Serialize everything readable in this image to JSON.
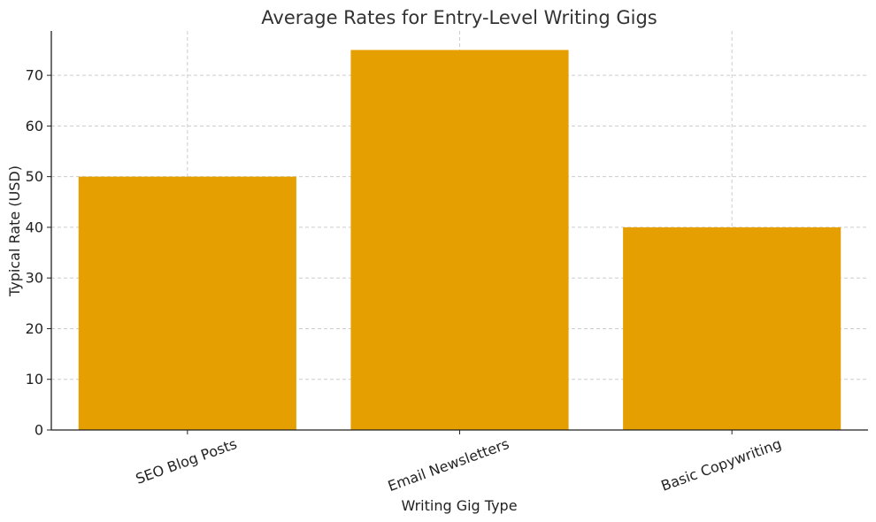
{
  "chart_data": {
    "type": "bar",
    "title": "Average Rates for Entry-Level Writing Gigs",
    "xlabel": "Writing Gig Type",
    "ylabel": "Typical Rate (USD)",
    "categories": [
      "SEO Blog Posts",
      "Email Newsletters",
      "Basic Copywriting"
    ],
    "values": [
      50,
      75,
      40
    ],
    "ylim": [
      0,
      78.75
    ],
    "yticks": [
      0,
      10,
      20,
      30,
      40,
      50,
      60,
      70
    ],
    "grid": true,
    "bar_color": "#E69F00"
  }
}
